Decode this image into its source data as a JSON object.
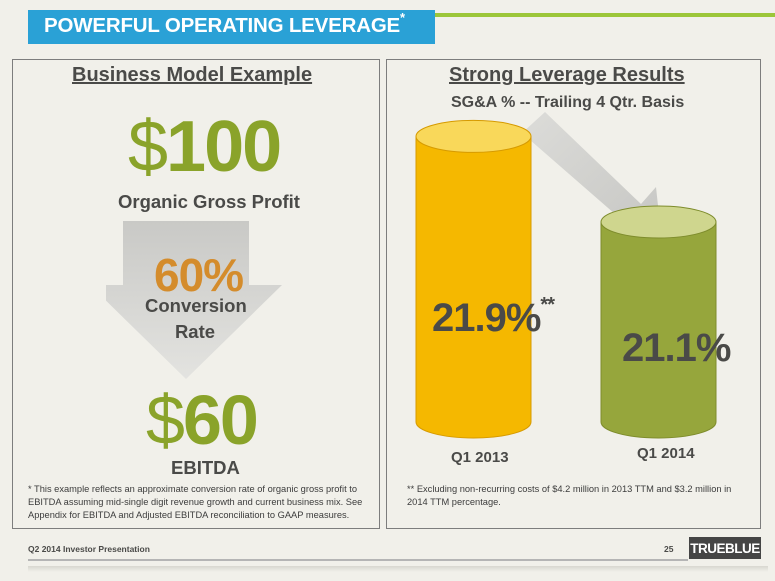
{
  "slide": {
    "title": "POWERFUL OPERATING LEVERAGE",
    "title_mark": "*",
    "footer_left": "Q2 2014 Investor Presentation",
    "page_number": "25",
    "logo": "TRUEBLUE"
  },
  "left": {
    "heading": "Business Model Example",
    "currency": "$",
    "gross_profit_value": "100",
    "gross_profit_label": "Organic  Gross Profit",
    "conversion_pct": "60%",
    "conversion_label_1": "Conversion",
    "conversion_label_2": "Rate",
    "ebitda_value": "60",
    "ebitda_label": "EBITDA",
    "footnote": "* This example reflects an approximate conversion rate of organic gross profit to EBITDA assuming mid-single digit revenue growth and current business mix. See Appendix for EBITDA and Adjusted EBITDA reconciliation to GAAP measures."
  },
  "right": {
    "heading": "Strong Leverage Results",
    "subheading": "SG&A % -- Trailing 4 Qtr. Basis",
    "footnote": "**   Excluding non-recurring costs of  $4.2 million in  2013 TTM and $3.2 million in 2014 TTM  percentage."
  },
  "chart_data": {
    "type": "bar",
    "title": "SG&A % -- Trailing 4 Qtr. Basis",
    "categories": [
      "Q1 2013",
      "Q1 2014"
    ],
    "values": [
      21.9,
      21.1
    ],
    "labels": [
      "21.9%",
      "21.1%"
    ],
    "annotations": [
      "**",
      ""
    ],
    "colors": [
      "#f5b800",
      "#96a63c"
    ],
    "xlabel": "",
    "ylabel": ""
  }
}
